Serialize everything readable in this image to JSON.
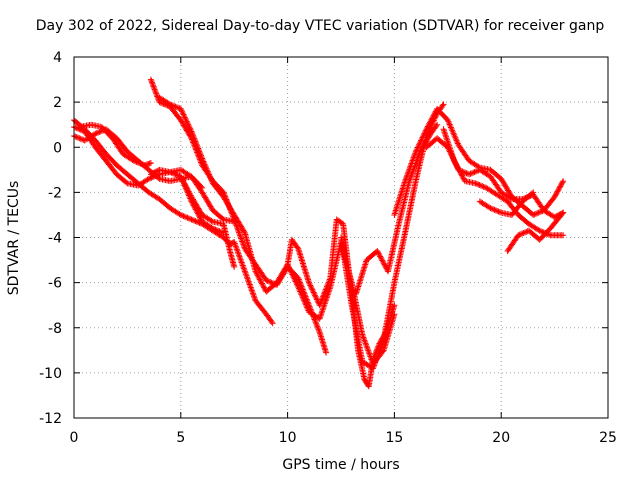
{
  "chart_data": {
    "type": "scatter",
    "title": "Day 302 of 2022, Sidereal Day-to-day VTEC variation (SDTVAR) for receiver ganp",
    "xlabel": "GPS time / hours",
    "ylabel": "SDTVAR / TECUs",
    "xlim": [
      0,
      25
    ],
    "ylim": [
      -12,
      4
    ],
    "xticks": [
      0,
      5,
      10,
      15,
      20,
      25
    ],
    "yticks": [
      4,
      2,
      0,
      -2,
      -4,
      -6,
      -8,
      -10,
      -12
    ],
    "grid": true,
    "marker": "+",
    "color": "#ff0000",
    "series": [
      {
        "x": [
          0,
          0.5,
          1,
          1.5,
          2,
          2.5,
          3,
          3.5,
          4,
          4.5,
          5,
          5.5,
          6,
          6.5,
          7,
          7.3,
          7.5,
          8,
          8.5,
          9,
          9.3
        ],
        "y": [
          1.2,
          0.8,
          0.3,
          -0.3,
          -0.8,
          -1.2,
          -1.6,
          -2.0,
          -2.3,
          -2.7,
          -3.0,
          -3.2,
          -3.4,
          -3.7,
          -4.0,
          -4.3,
          -4.2,
          -5.5,
          -6.8,
          -7.4,
          -7.8
        ]
      },
      {
        "x": [
          0,
          0.5,
          1,
          1.5,
          2,
          2.5,
          3,
          3.5,
          4,
          4.5,
          5,
          5.5,
          6
        ],
        "y": [
          0.5,
          0.3,
          0.6,
          0.8,
          0.4,
          -0.2,
          -0.6,
          -1.0,
          -1.4,
          -1.5,
          -1.4,
          -1.3,
          -1.8
        ]
      },
      {
        "x": [
          0,
          0.5,
          1,
          1.5,
          2,
          2.5,
          3,
          3.5,
          4,
          4.5,
          5,
          5.5,
          6,
          6.5,
          7,
          7.5
        ],
        "y": [
          0.9,
          0.7,
          0.0,
          -0.6,
          -1.2,
          -1.6,
          -1.7,
          -1.4,
          -1.2,
          -1.1,
          -1.0,
          -1.3,
          -2.0,
          -2.8,
          -3.2,
          -3.3
        ]
      },
      {
        "x": [
          0.3,
          0.8,
          1.3,
          1.8,
          2.3,
          2.8,
          3.3,
          3.6
        ],
        "y": [
          0.9,
          1.0,
          0.9,
          0.4,
          -0.3,
          -0.6,
          -0.8,
          -0.7
        ]
      },
      {
        "x": [
          3.6,
          4.0,
          4.5,
          5.0,
          5.5,
          6.0,
          6.5,
          7.0,
          7.3,
          7.5
        ],
        "y": [
          -1.2,
          -1.0,
          -1.1,
          -1.3,
          -2.2,
          -3.0,
          -3.3,
          -3.4,
          -4.6,
          -5.3
        ]
      },
      {
        "x": [
          5.0,
          5.5,
          6.0,
          6.5,
          7.0
        ],
        "y": [
          -1.3,
          -2.4,
          -3.3,
          -3.6,
          -3.8
        ]
      },
      {
        "x": [
          3.6,
          4.0,
          4.5,
          5.0,
          5.5,
          6.0,
          6.5,
          7.0,
          7.5,
          8.0,
          8.5,
          9.0,
          9.5,
          10.0,
          10.5,
          11.0,
          11.5,
          11.8
        ],
        "y": [
          3.0,
          2.0,
          1.8,
          1.2,
          0.4,
          -0.8,
          -1.5,
          -2.0,
          -3.2,
          -4.5,
          -5.2,
          -5.9,
          -6.1,
          -5.3,
          -5.8,
          -7.0,
          -8.2,
          -9.1
        ]
      },
      {
        "x": [
          4.0,
          4.5,
          5.0,
          5.5,
          6.0,
          6.5,
          7.0,
          7.5,
          8.0
        ],
        "y": [
          2.2,
          1.9,
          1.7,
          0.7,
          -0.5,
          -1.6,
          -2.2,
          -3.0,
          -3.8
        ]
      },
      {
        "x": [
          8.0,
          8.5,
          9.0,
          9.5,
          10.0,
          10.2,
          10.5,
          11.0,
          11.5,
          12.0,
          12.3,
          12.6,
          13.0,
          13.3,
          13.6,
          13.8,
          14.0,
          14.3,
          14.6,
          15.0
        ],
        "y": [
          -3.8,
          -5.5,
          -6.4,
          -6.0,
          -5.2,
          -4.1,
          -4.5,
          -6.0,
          -7.0,
          -5.8,
          -3.2,
          -3.4,
          -6.5,
          -9.0,
          -10.3,
          -10.6,
          -9.4,
          -8.7,
          -8.2,
          -7.0
        ]
      },
      {
        "x": [
          10.0,
          10.5,
          11.0,
          11.5,
          12.0,
          12.5,
          13.0,
          13.5,
          14.0,
          14.5,
          15.0
        ],
        "y": [
          -5.2,
          -6.2,
          -7.3,
          -7.6,
          -6.2,
          -4.2,
          -6.0,
          -8.3,
          -9.6,
          -9.0,
          -7.4
        ]
      },
      {
        "x": [
          12.5,
          13.0,
          13.5,
          14.0,
          14.5,
          15.0,
          15.5,
          16.0,
          16.5,
          17.0,
          17.3
        ],
        "y": [
          -4.0,
          -7.0,
          -9.5,
          -9.8,
          -8.5,
          -6.0,
          -3.8,
          -1.5,
          0.5,
          1.5,
          1.9
        ]
      },
      {
        "x": [
          13.2,
          13.7,
          14.2,
          14.7,
          15.2,
          15.7,
          16.2,
          16.7,
          17.0
        ],
        "y": [
          -6.5,
          -5.0,
          -4.6,
          -5.5,
          -3.4,
          -1.5,
          -0.2,
          0.6,
          1.0
        ]
      },
      {
        "x": [
          15.0,
          15.5,
          16.0,
          16.5,
          17.0,
          17.5,
          18.0,
          18.5,
          19.0,
          19.5,
          20.0,
          20.5,
          21.0,
          21.5,
          22.0,
          22.5,
          22.9
        ],
        "y": [
          -3.0,
          -1.5,
          -0.2,
          0.8,
          1.7,
          1.2,
          0.1,
          -0.6,
          -0.9,
          -1.0,
          -1.4,
          -2.2,
          -2.6,
          -3.0,
          -2.8,
          -2.2,
          -1.5
        ]
      },
      {
        "x": [
          16.5,
          17.0,
          17.5,
          18.0,
          18.5,
          19.0,
          19.5,
          20.0,
          20.5,
          21.0,
          21.5,
          22.0,
          22.5,
          22.9
        ],
        "y": [
          0.0,
          0.4,
          0.0,
          -1.0,
          -1.2,
          -1.0,
          -1.3,
          -2.0,
          -2.3,
          -2.3,
          -2.1,
          -2.8,
          -3.1,
          -2.9
        ]
      },
      {
        "x": [
          17.3,
          17.8,
          18.3,
          18.8,
          19.3,
          19.8,
          20.3,
          20.8,
          21.3,
          21.8,
          22.3,
          22.9
        ],
        "y": [
          0.8,
          -0.6,
          -1.5,
          -1.6,
          -1.8,
          -2.1,
          -2.4,
          -3.0,
          -3.4,
          -3.7,
          -3.9,
          -3.9
        ]
      },
      {
        "x": [
          19.0,
          19.5,
          20.0,
          20.5,
          21.0,
          21.5
        ],
        "y": [
          -2.4,
          -2.7,
          -2.9,
          -3.0,
          -2.4,
          -2.0
        ]
      },
      {
        "x": [
          20.3,
          20.8,
          21.3,
          21.8,
          22.3,
          22.9
        ],
        "y": [
          -4.6,
          -3.9,
          -3.7,
          -4.1,
          -3.6,
          -2.9
        ]
      }
    ]
  }
}
